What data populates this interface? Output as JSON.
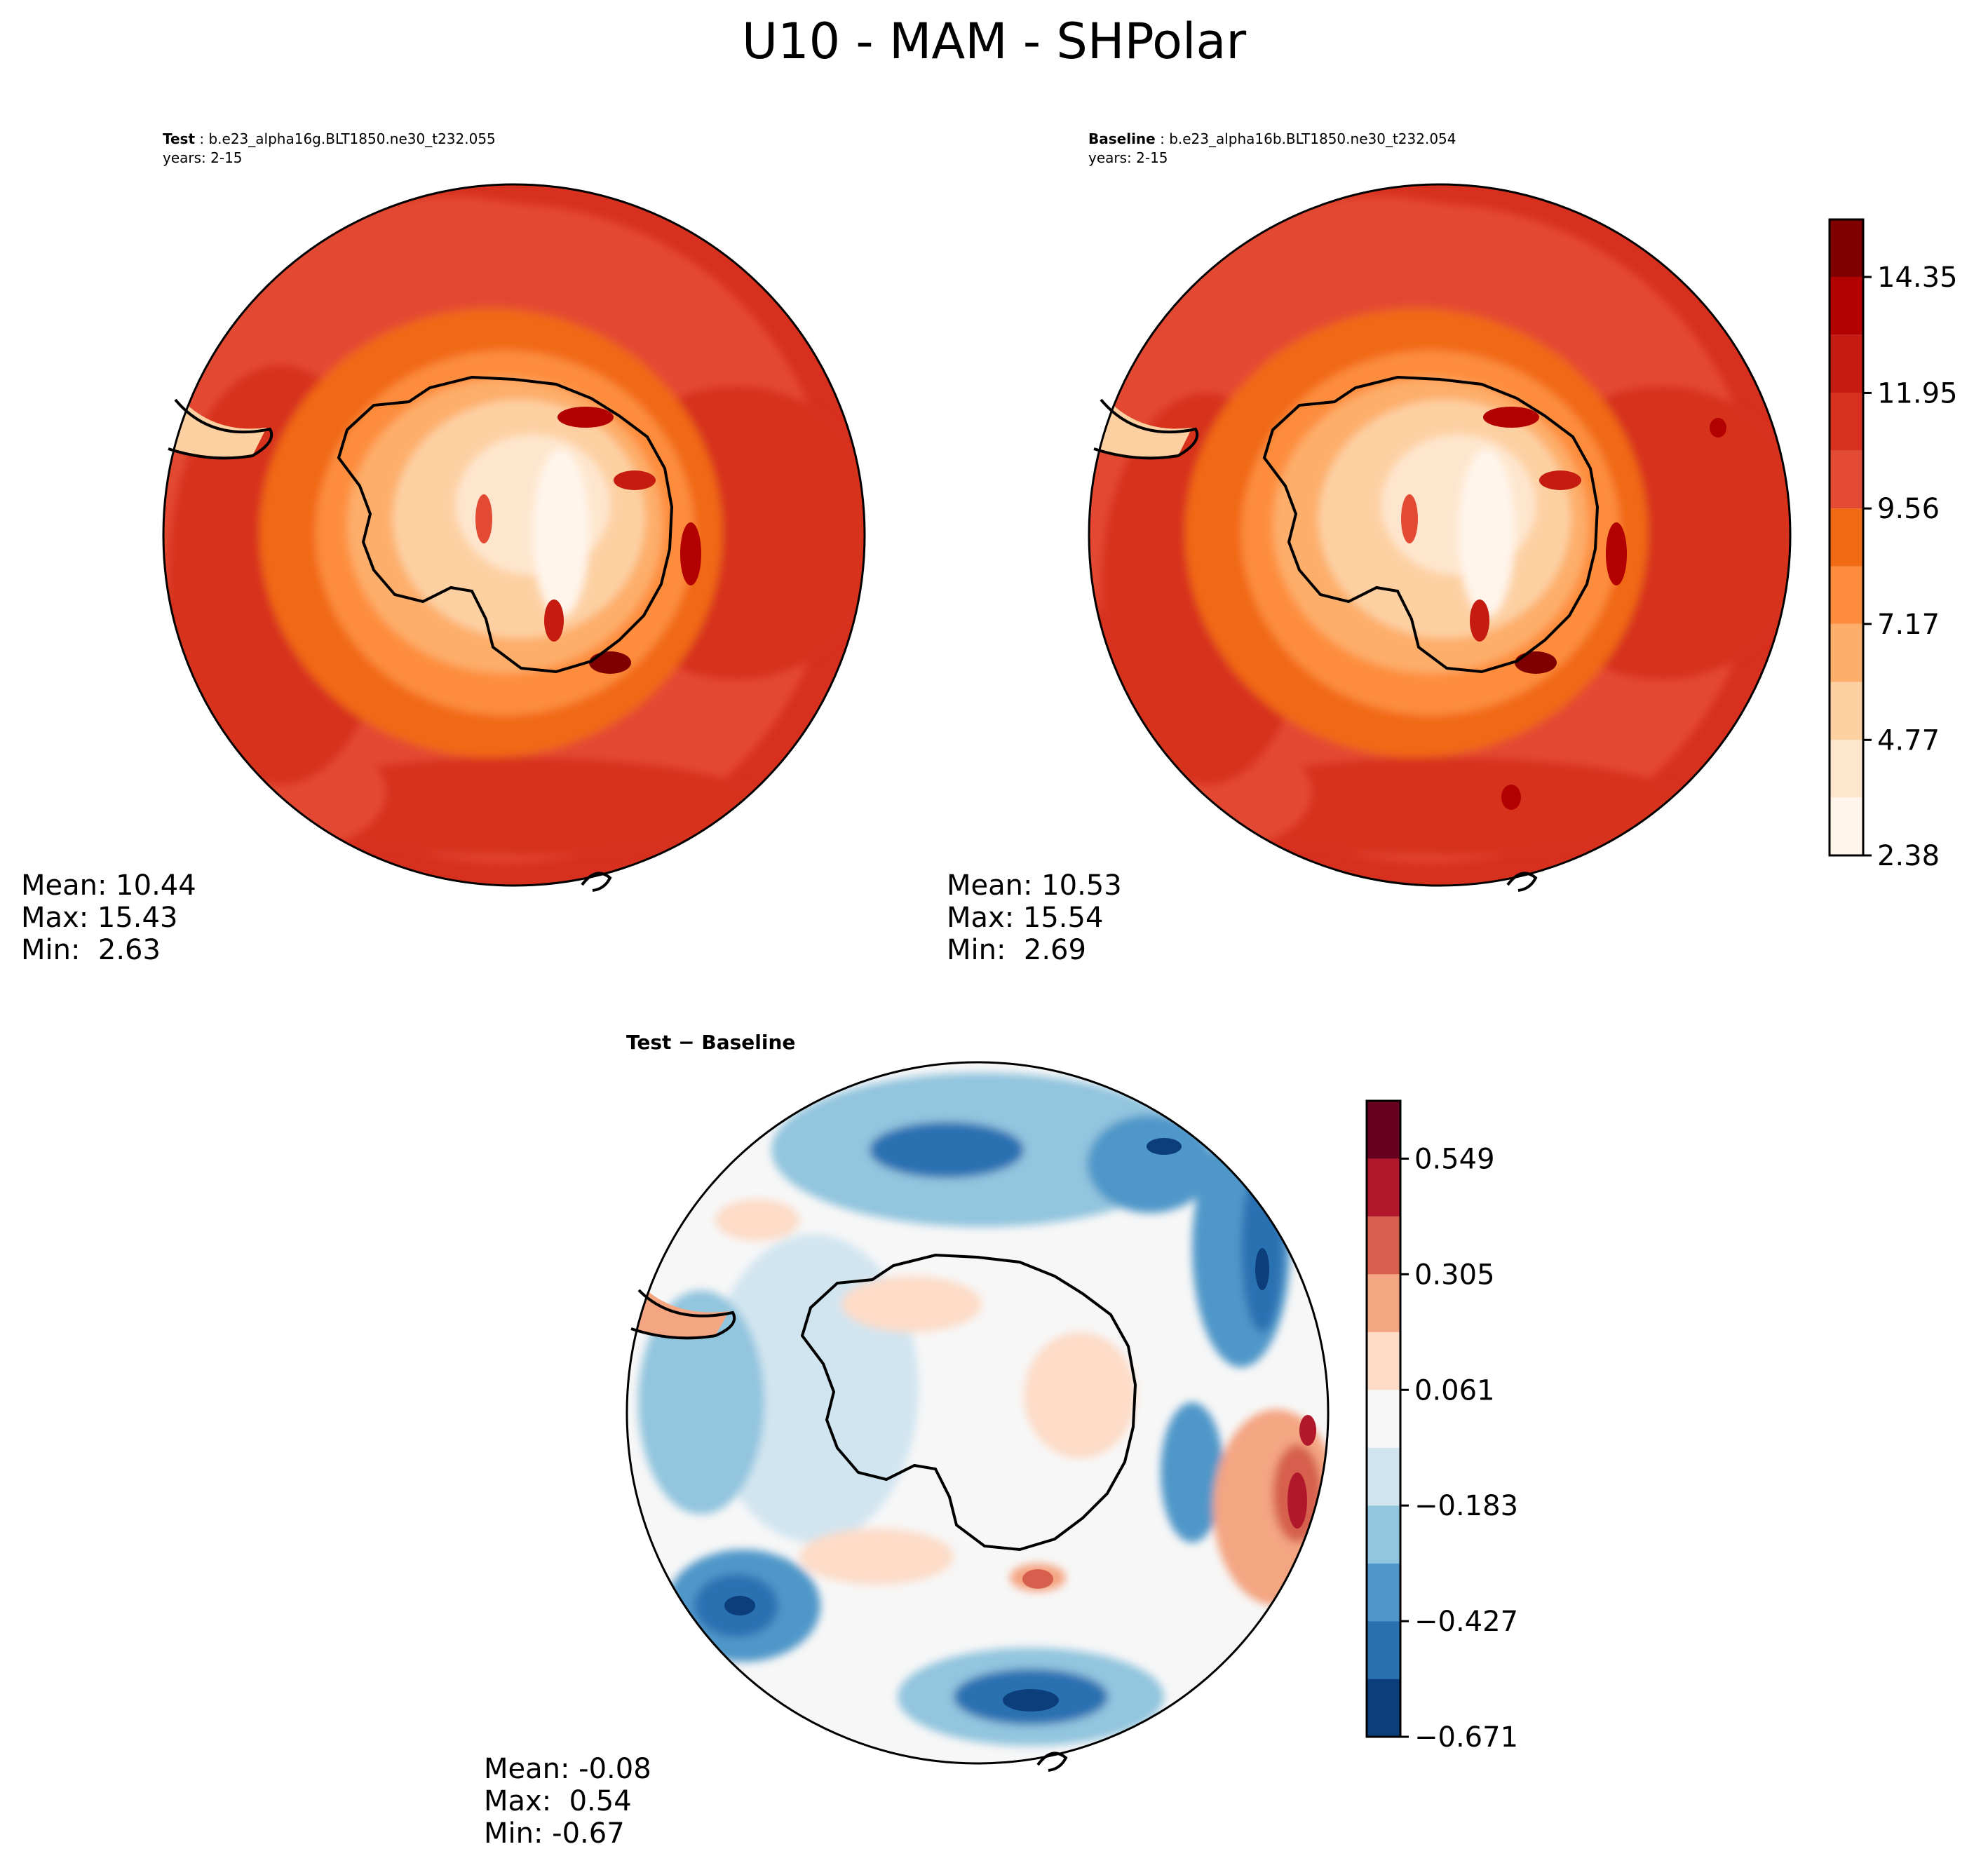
{
  "title": "U10 - MAM - SHPolar",
  "panels": [
    {
      "label": "Test",
      "case": " : b.e23_alpha16g.BLT1850.ne30_t232.055",
      "years": "years: 2-15",
      "stats": {
        "mean": "Mean: 10.44",
        "max": "Max: 15.43",
        "min": "Min:  2.63"
      }
    },
    {
      "label": "Baseline",
      "case": " : b.e23_alpha16b.BLT1850.ne30_t232.054",
      "years": "years: 2-15",
      "stats": {
        "mean": "Mean: 10.53",
        "max": "Max: 15.54",
        "min": "Min:  2.69"
      }
    },
    {
      "label": "Test − Baseline",
      "stats": {
        "mean": "Mean: -0.08",
        "max": "Max:  0.54",
        "min": "Min: -0.67"
      }
    }
  ],
  "chart_data": [
    {
      "type": "heatmap",
      "variable": "U10",
      "season": "MAM",
      "region": "SHPolar",
      "panel": "Test",
      "colormap": "Reds (sequential)",
      "colorbar": {
        "ticks": [
          "2.38",
          "4.77",
          "7.17",
          "9.56",
          "11.95",
          "14.35"
        ],
        "levels": [
          2.38,
          3.58,
          4.77,
          5.97,
          7.17,
          8.36,
          9.56,
          10.76,
          11.95,
          13.15,
          14.35,
          15.54
        ],
        "colors": [
          "#fff5eb",
          "#fee6ce",
          "#fdd0a2",
          "#fdae6b",
          "#fd8d3c",
          "#f16913",
          "#e34a33",
          "#d7301f",
          "#c51b10",
          "#b30000",
          "#7f0000"
        ]
      },
      "stats": {
        "mean": 10.44,
        "max": 15.43,
        "min": 2.63
      }
    },
    {
      "type": "heatmap",
      "variable": "U10",
      "season": "MAM",
      "region": "SHPolar",
      "panel": "Baseline",
      "colormap": "Reds (sequential)",
      "colorbar": {
        "ticks": [
          "2.38",
          "4.77",
          "7.17",
          "9.56",
          "11.95",
          "14.35"
        ],
        "levels": [
          2.38,
          3.58,
          4.77,
          5.97,
          7.17,
          8.36,
          9.56,
          10.76,
          11.95,
          13.15,
          14.35,
          15.54
        ],
        "colors": [
          "#fff5eb",
          "#fee6ce",
          "#fdd0a2",
          "#fdae6b",
          "#fd8d3c",
          "#f16913",
          "#e34a33",
          "#d7301f",
          "#c51b10",
          "#b30000",
          "#7f0000"
        ]
      },
      "stats": {
        "mean": 10.53,
        "max": 15.54,
        "min": 2.69
      }
    },
    {
      "type": "heatmap",
      "variable": "U10",
      "season": "MAM",
      "region": "SHPolar",
      "panel": "Test − Baseline",
      "colormap": "RdBu_r (diverging)",
      "colorbar": {
        "ticks": [
          "−0.671",
          "−0.427",
          "−0.183",
          "0.061",
          "0.305",
          "0.549"
        ],
        "levels": [
          -0.671,
          -0.549,
          -0.427,
          -0.305,
          -0.183,
          -0.061,
          0.061,
          0.183,
          0.305,
          0.427,
          0.549,
          0.671
        ],
        "colors": [
          "#0b3e7a",
          "#2a71b2",
          "#4f97c9",
          "#92c5de",
          "#d1e5f0",
          "#f7f7f7",
          "#fddbc7",
          "#f4a582",
          "#d6604d",
          "#b2182b",
          "#67001f"
        ]
      },
      "stats": {
        "mean": -0.08,
        "max": 0.54,
        "min": -0.67
      }
    }
  ]
}
